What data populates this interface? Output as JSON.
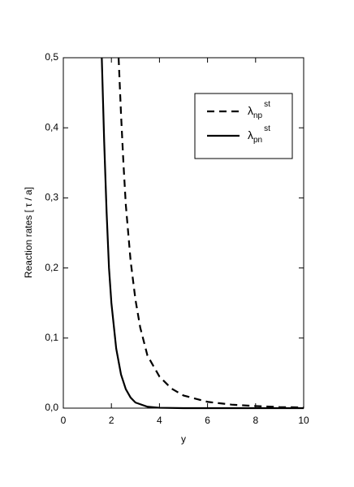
{
  "chart_data": {
    "type": "line",
    "xlabel": "y",
    "ylabel": "Reaction rates [ τ / a]",
    "xlim": [
      0,
      10
    ],
    "ylim": [
      0,
      0.5
    ],
    "xticks": [
      0,
      2,
      4,
      6,
      8,
      10
    ],
    "yticks": [
      {
        "value": 0,
        "label": "0,0"
      },
      {
        "value": 0.1,
        "label": "0,1"
      },
      {
        "value": 0.2,
        "label": "0,2"
      },
      {
        "value": 0.3,
        "label": "0,3"
      },
      {
        "value": 0.4,
        "label": "0,4"
      },
      {
        "value": 0.5,
        "label": "0,5"
      }
    ],
    "legend": "upper right",
    "series": [
      {
        "name": "λ",
        "subscript": "np",
        "superscript": "st",
        "color": "#000000",
        "dash": "dashed",
        "x": [
          2.3,
          2.4,
          2.5,
          2.6,
          2.8,
          3.0,
          3.2,
          3.5,
          4.0,
          4.5,
          5.0,
          6.0,
          7.0,
          8.0,
          9.0,
          10.0
        ],
        "values": [
          0.5,
          0.42,
          0.35,
          0.29,
          0.21,
          0.155,
          0.115,
          0.075,
          0.045,
          0.028,
          0.018,
          0.009,
          0.005,
          0.003,
          0.0015,
          0.001
        ]
      },
      {
        "name": "λ",
        "subscript": "pn",
        "superscript": "st",
        "color": "#000000",
        "dash": "solid",
        "x": [
          1.6,
          1.7,
          1.8,
          1.9,
          2.0,
          2.2,
          2.4,
          2.6,
          2.8,
          3.0,
          3.5,
          4.0,
          5.0,
          10.0
        ],
        "values": [
          0.5,
          0.38,
          0.28,
          0.2,
          0.15,
          0.085,
          0.048,
          0.027,
          0.015,
          0.008,
          0.002,
          0.0005,
          0,
          0
        ]
      }
    ]
  }
}
